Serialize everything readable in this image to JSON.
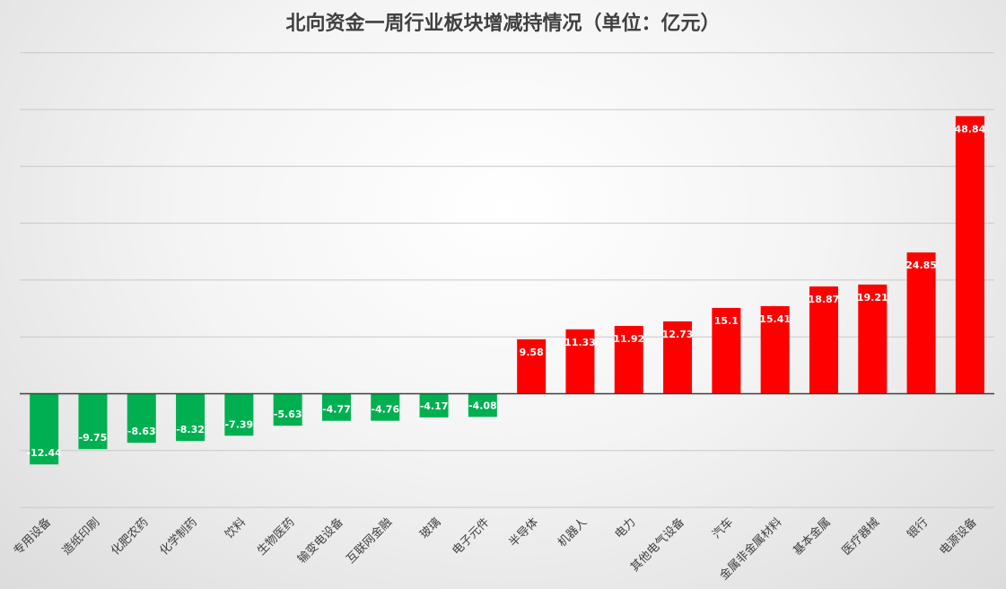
{
  "chart_data": {
    "type": "bar",
    "title": "北向资金一周行业板块增减持情况（单位：亿元）",
    "xlabel": "",
    "ylabel": "",
    "ylim": [
      -20,
      60
    ],
    "grid": true,
    "legend": "none",
    "colors": {
      "positive": "#ff0000",
      "negative": "#00b050"
    },
    "categories": [
      "专用设备",
      "造纸印刷",
      "化肥农药",
      "化学制药",
      "饮料",
      "生物医药",
      "输变电设备",
      "互联网金融",
      "玻璃",
      "电子元件",
      "半导体",
      "机器人",
      "电力",
      "其他电气设备",
      "汽车",
      "金属非金属材料",
      "基本金属",
      "医疗器械",
      "银行",
      "电源设备"
    ],
    "values": [
      -12.44,
      -9.75,
      -8.63,
      -8.32,
      -7.39,
      -5.63,
      -4.77,
      -4.76,
      -4.17,
      -4.08,
      9.58,
      11.33,
      11.92,
      12.73,
      15.1,
      15.41,
      18.87,
      19.21,
      24.85,
      48.84
    ],
    "labels": [
      "-12.44",
      "-9.75",
      "-8.63",
      "-8.32",
      "-7.39",
      "-5.63",
      "-4.77",
      "-4.76",
      "-4.17",
      "-4.08",
      "9.58",
      "11.33",
      "11.92",
      "12.73",
      "15.1",
      "15.41",
      "18.87",
      "19.21",
      "24.85",
      "48.84"
    ]
  }
}
